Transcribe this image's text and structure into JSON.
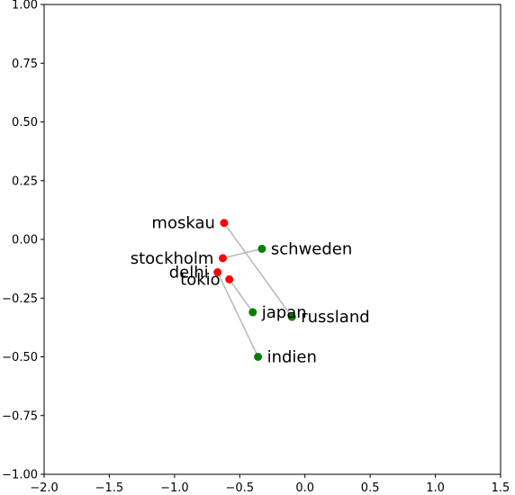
{
  "chart_data": {
    "type": "scatter",
    "title": "",
    "xlabel": "",
    "ylabel": "",
    "xlim": [
      -2.0,
      1.5
    ],
    "ylim": [
      -1.0,
      1.0
    ],
    "xticks": [
      "−2.0",
      "−1.5",
      "−1.0",
      "−0.5",
      "0.0",
      "0.5",
      "1.0",
      "1.5"
    ],
    "yticks": [
      "−1.00",
      "−0.75",
      "−0.50",
      "−0.25",
      "0.00",
      "0.25",
      "0.50",
      "0.75",
      "1.00"
    ],
    "grid": false,
    "colors": {
      "capital": "#ff0000",
      "country": "#008000",
      "connector": "#bbbbbb"
    },
    "points": [
      {
        "label": "moskau",
        "x": -0.62,
        "y": 0.07,
        "group": "capital"
      },
      {
        "label": "stockholm",
        "x": -0.63,
        "y": -0.08,
        "group": "capital"
      },
      {
        "label": "delhi",
        "x": -0.67,
        "y": -0.14,
        "group": "capital"
      },
      {
        "label": "tokio",
        "x": -0.58,
        "y": -0.17,
        "group": "capital"
      },
      {
        "label": "schweden",
        "x": -0.33,
        "y": -0.04,
        "group": "country"
      },
      {
        "label": "japan",
        "x": -0.4,
        "y": -0.31,
        "group": "country"
      },
      {
        "label": "russland",
        "x": -0.1,
        "y": -0.33,
        "group": "country"
      },
      {
        "label": "indien",
        "x": -0.36,
        "y": -0.5,
        "group": "country"
      }
    ],
    "connections": [
      {
        "from": "moskau",
        "to": "russland"
      },
      {
        "from": "stockholm",
        "to": "schweden"
      },
      {
        "from": "delhi",
        "to": "indien"
      },
      {
        "from": "tokio",
        "to": "japan"
      }
    ]
  }
}
